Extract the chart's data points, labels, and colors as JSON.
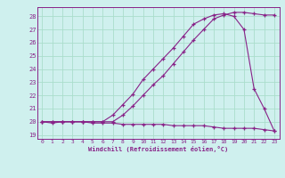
{
  "xlabel": "Windchill (Refroidissement éolien,°C)",
  "bg_color": "#cff0ee",
  "grid_color": "#aaddcc",
  "line_color": "#882288",
  "xlim": [
    -0.5,
    23.5
  ],
  "ylim": [
    18.7,
    28.7
  ],
  "yticks": [
    19,
    20,
    21,
    22,
    23,
    24,
    25,
    26,
    27,
    28
  ],
  "xticks": [
    0,
    1,
    2,
    3,
    4,
    5,
    6,
    7,
    8,
    9,
    10,
    11,
    12,
    13,
    14,
    15,
    16,
    17,
    18,
    19,
    20,
    21,
    22,
    23
  ],
  "curve1_x": [
    0,
    1,
    2,
    3,
    4,
    5,
    6,
    7,
    8,
    9,
    10,
    11,
    12,
    13,
    14,
    15,
    16,
    17,
    18,
    19,
    20,
    21,
    22,
    23
  ],
  "curve1_y": [
    20.0,
    19.9,
    20.0,
    20.0,
    20.0,
    19.9,
    19.9,
    19.9,
    19.8,
    19.8,
    19.8,
    19.8,
    19.8,
    19.7,
    19.7,
    19.7,
    19.7,
    19.6,
    19.5,
    19.5,
    19.5,
    19.5,
    19.4,
    19.3
  ],
  "curve2_x": [
    0,
    1,
    2,
    3,
    4,
    5,
    6,
    7,
    8,
    9,
    10,
    11,
    12,
    13,
    14,
    15,
    16,
    17,
    18,
    19,
    20,
    21,
    22,
    23
  ],
  "curve2_y": [
    20.0,
    20.0,
    20.0,
    20.0,
    20.0,
    20.0,
    20.0,
    20.0,
    20.5,
    21.2,
    22.0,
    22.8,
    23.5,
    24.4,
    25.3,
    26.2,
    27.0,
    27.8,
    28.1,
    28.3,
    28.3,
    28.2,
    28.1,
    28.1
  ],
  "curve3_x": [
    0,
    1,
    2,
    3,
    4,
    5,
    6,
    7,
    8,
    9,
    10,
    11,
    12,
    13,
    14,
    15,
    16,
    17,
    18,
    19,
    20,
    21,
    22,
    23
  ],
  "curve3_y": [
    20.0,
    20.0,
    20.0,
    20.0,
    20.0,
    20.0,
    20.0,
    20.5,
    21.3,
    22.1,
    23.2,
    24.0,
    24.8,
    25.6,
    26.5,
    27.4,
    27.8,
    28.1,
    28.2,
    28.0,
    27.0,
    22.5,
    21.0,
    19.3
  ]
}
